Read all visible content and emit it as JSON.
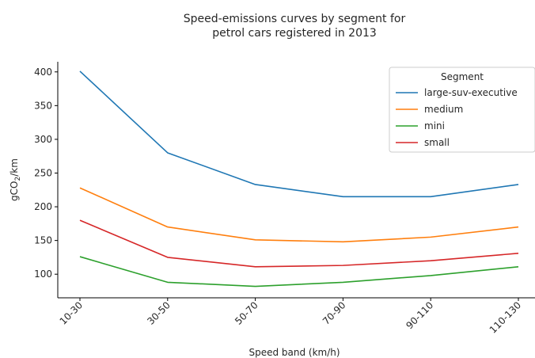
{
  "chart_data": {
    "type": "line",
    "title_lines": [
      "Speed-emissions curves by segment for",
      "petrol cars registered in 2013"
    ],
    "xlabel": "Speed band (km/h)",
    "ylabel": "gCO",
    "ylabel_sub": "2",
    "ylabel_suffix": "/km",
    "categories": [
      "10-30",
      "30-50",
      "50-70",
      "70-90",
      "90-110",
      "110-130"
    ],
    "ylim": [
      65,
      415
    ],
    "yticks": [
      100,
      150,
      200,
      250,
      300,
      350,
      400
    ],
    "grid": false,
    "legend": {
      "title": "Segment",
      "placement": "top-right"
    },
    "series": [
      {
        "name": "large-suv-executive",
        "color": "#1f77b4",
        "values": [
          401,
          280,
          233,
          215,
          215,
          233
        ]
      },
      {
        "name": "medium",
        "color": "#ff7f0e",
        "values": [
          228,
          170,
          151,
          148,
          155,
          170
        ]
      },
      {
        "name": "mini",
        "color": "#2ca02c",
        "values": [
          126,
          88,
          82,
          88,
          98,
          111
        ]
      },
      {
        "name": "small",
        "color": "#d62728",
        "values": [
          180,
          125,
          111,
          113,
          120,
          131
        ]
      }
    ]
  }
}
